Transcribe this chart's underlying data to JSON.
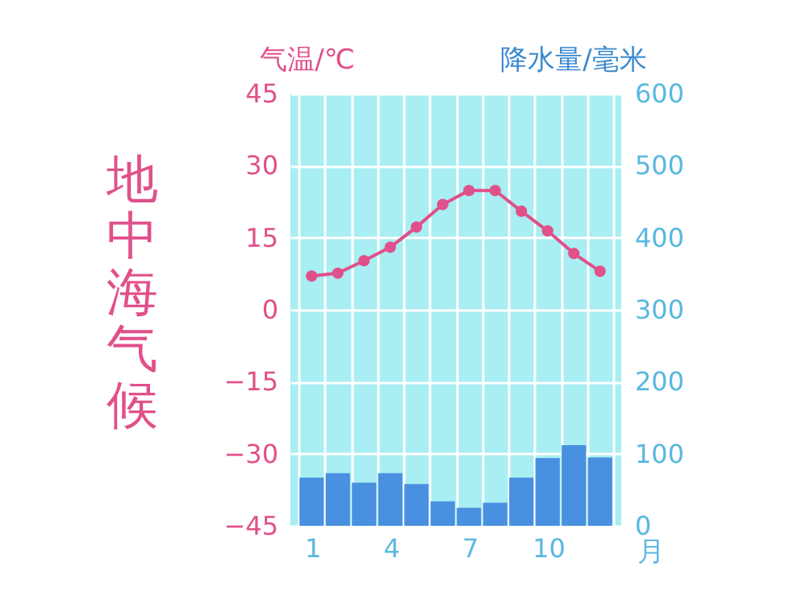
{
  "chart_data": {
    "type": "bar",
    "title": "地中海气候",
    "xlabel": "月",
    "ylabel": "气温/℃",
    "y2label": "降水量/毫米",
    "categories": [
      "1",
      null,
      null,
      "4",
      null,
      null,
      "7",
      null,
      null,
      "10",
      null,
      null
    ],
    "series": [
      {
        "axis": "y2",
        "color": "#4a90e0",
        "values": [
          67,
          73,
          60,
          73,
          58,
          34,
          25,
          32,
          67,
          94,
          112,
          95
        ]
      },
      {
        "type": "line",
        "color": "#e0508a",
        "marker": "circle",
        "line_style": "solid",
        "values": [
          7,
          7.6,
          10.2,
          13,
          17.2,
          21.9,
          24.8,
          24.8,
          20.5,
          16.4,
          11.7,
          8
        ]
      }
    ],
    "ylim": [
      -45,
      45
    ],
    "yticks": [
      -45,
      -30,
      -15,
      0,
      15,
      30,
      45
    ],
    "y2lim": [
      0,
      600
    ],
    "y2ticks": [
      0,
      100,
      200,
      300,
      400,
      500,
      600
    ],
    "grid": true
  }
}
